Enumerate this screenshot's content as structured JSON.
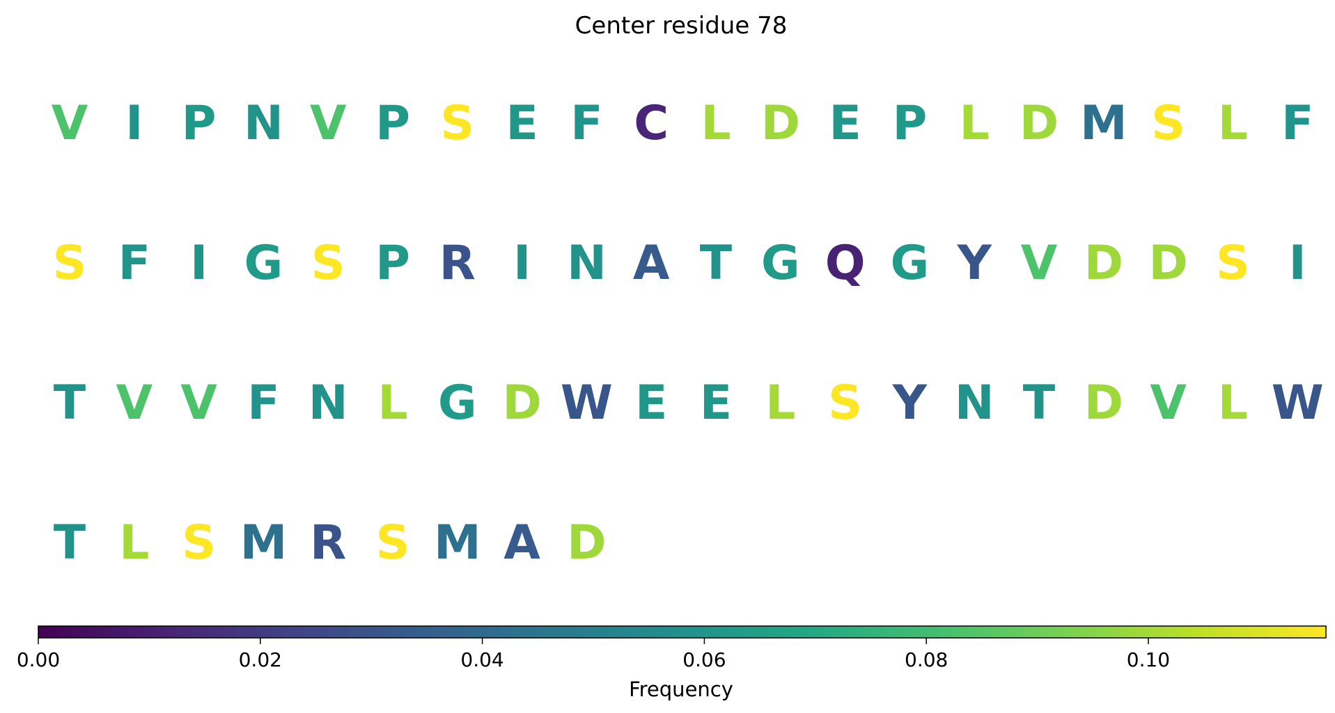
{
  "chart_data": {
    "type": "heatmap",
    "title": "Center residue 78",
    "colormap": "viridis",
    "residues": [
      {
        "letter": "V",
        "frequency": 0.083
      },
      {
        "letter": "I",
        "frequency": 0.059
      },
      {
        "letter": "P",
        "frequency": 0.062
      },
      {
        "letter": "N",
        "frequency": 0.059
      },
      {
        "letter": "V",
        "frequency": 0.083
      },
      {
        "letter": "P",
        "frequency": 0.062
      },
      {
        "letter": "S",
        "frequency": 0.116
      },
      {
        "letter": "E",
        "frequency": 0.061
      },
      {
        "letter": "F",
        "frequency": 0.06
      },
      {
        "letter": "C",
        "frequency": 0.012
      },
      {
        "letter": "L",
        "frequency": 0.1
      },
      {
        "letter": "D",
        "frequency": 0.099
      },
      {
        "letter": "E",
        "frequency": 0.061
      },
      {
        "letter": "P",
        "frequency": 0.062
      },
      {
        "letter": "L",
        "frequency": 0.1
      },
      {
        "letter": "D",
        "frequency": 0.099
      },
      {
        "letter": "M",
        "frequency": 0.043
      },
      {
        "letter": "S",
        "frequency": 0.116
      },
      {
        "letter": "L",
        "frequency": 0.1
      },
      {
        "letter": "F",
        "frequency": 0.06
      },
      {
        "letter": "S",
        "frequency": 0.116
      },
      {
        "letter": "F",
        "frequency": 0.06
      },
      {
        "letter": "I",
        "frequency": 0.059
      },
      {
        "letter": "G",
        "frequency": 0.063
      },
      {
        "letter": "S",
        "frequency": 0.116
      },
      {
        "letter": "P",
        "frequency": 0.062
      },
      {
        "letter": "R",
        "frequency": 0.03
      },
      {
        "letter": "I",
        "frequency": 0.059
      },
      {
        "letter": "N",
        "frequency": 0.059
      },
      {
        "letter": "A",
        "frequency": 0.033
      },
      {
        "letter": "T",
        "frequency": 0.059
      },
      {
        "letter": "G",
        "frequency": 0.063
      },
      {
        "letter": "Q",
        "frequency": 0.011
      },
      {
        "letter": "G",
        "frequency": 0.063
      },
      {
        "letter": "Y",
        "frequency": 0.031
      },
      {
        "letter": "V",
        "frequency": 0.083
      },
      {
        "letter": "D",
        "frequency": 0.099
      },
      {
        "letter": "D",
        "frequency": 0.099
      },
      {
        "letter": "S",
        "frequency": 0.116
      },
      {
        "letter": "I",
        "frequency": 0.059
      },
      {
        "letter": "T",
        "frequency": 0.059
      },
      {
        "letter": "V",
        "frequency": 0.083
      },
      {
        "letter": "V",
        "frequency": 0.083
      },
      {
        "letter": "F",
        "frequency": 0.06
      },
      {
        "letter": "N",
        "frequency": 0.059
      },
      {
        "letter": "L",
        "frequency": 0.1
      },
      {
        "letter": "G",
        "frequency": 0.063
      },
      {
        "letter": "D",
        "frequency": 0.099
      },
      {
        "letter": "W",
        "frequency": 0.031
      },
      {
        "letter": "E",
        "frequency": 0.061
      },
      {
        "letter": "E",
        "frequency": 0.061
      },
      {
        "letter": "L",
        "frequency": 0.1
      },
      {
        "letter": "S",
        "frequency": 0.116
      },
      {
        "letter": "Y",
        "frequency": 0.031
      },
      {
        "letter": "N",
        "frequency": 0.059
      },
      {
        "letter": "T",
        "frequency": 0.059
      },
      {
        "letter": "D",
        "frequency": 0.099
      },
      {
        "letter": "V",
        "frequency": 0.083
      },
      {
        "letter": "L",
        "frequency": 0.1
      },
      {
        "letter": "W",
        "frequency": 0.031
      },
      {
        "letter": "T",
        "frequency": 0.059
      },
      {
        "letter": "L",
        "frequency": 0.1
      },
      {
        "letter": "S",
        "frequency": 0.116
      },
      {
        "letter": "M",
        "frequency": 0.043
      },
      {
        "letter": "R",
        "frequency": 0.03
      },
      {
        "letter": "S",
        "frequency": 0.116
      },
      {
        "letter": "M",
        "frequency": 0.043
      },
      {
        "letter": "A",
        "frequency": 0.033
      },
      {
        "letter": "D",
        "frequency": 0.099
      }
    ],
    "colorbar": {
      "label": "Frequency",
      "range": [
        0,
        0.116
      ],
      "ticks": [
        0.0,
        0.02,
        0.04,
        0.06,
        0.08,
        0.1
      ],
      "tick_labels": [
        "0.00",
        "0.02",
        "0.04",
        "0.06",
        "0.08",
        "0.10"
      ],
      "orientation": "horizontal"
    }
  }
}
